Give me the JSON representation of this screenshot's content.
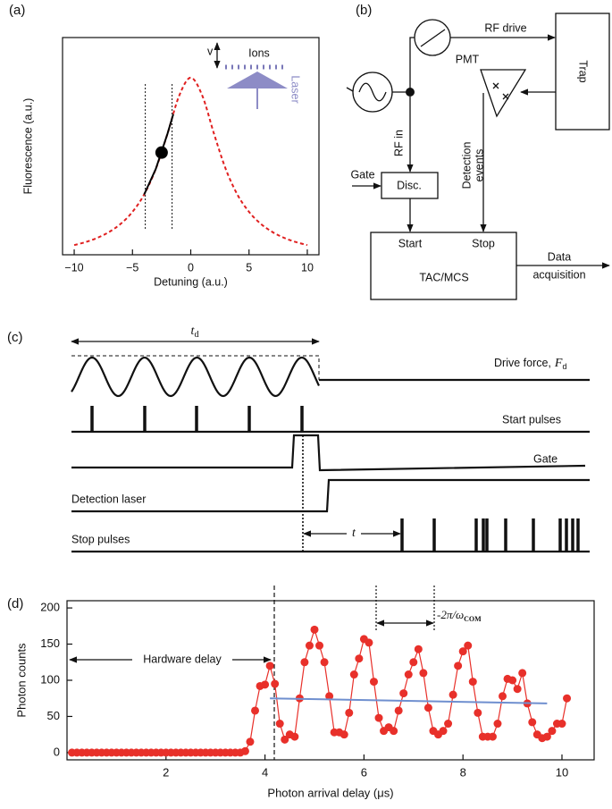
{
  "panel_labels": [
    "(a)",
    "(b)",
    "(c)",
    "(d)"
  ],
  "chart_data": [
    {
      "type": "line",
      "xlabel": "Detuning (a.u.)",
      "ylabel": "Fluorescence (a.u.)",
      "xlim": [
        -11,
        11
      ],
      "ylim": [
        0.03,
        1.22
      ],
      "xticks": [
        {
          "value": -10,
          "label": "−10"
        },
        {
          "value": -5,
          "label": "−5"
        },
        0,
        5,
        10
      ],
      "vlines": [
        -3.9,
        -1.6
      ],
      "series": [
        {
          "color": "#e02020",
          "style": "dashed",
          "x": [
            -10,
            -9,
            -8,
            -7,
            -6,
            -5,
            -4,
            -3,
            -2,
            -1,
            0,
            1,
            2,
            3,
            4,
            5,
            6,
            7,
            8,
            9,
            10
          ],
          "values": [
            0.083,
            0.1,
            0.123,
            0.155,
            0.2,
            0.265,
            0.36,
            0.5,
            0.692,
            0.9,
            1,
            0.9,
            0.692,
            0.5,
            0.36,
            0.265,
            0.2,
            0.155,
            0.123,
            0.1,
            0.083
          ]
        },
        {
          "color": "#000000",
          "style": "solid",
          "x": [
            -4,
            -3,
            -2,
            -1.5
          ],
          "values": [
            0.36,
            0.5,
            0.692,
            0.8
          ]
        },
        {
          "color": "#000000",
          "style": "marker",
          "x": [
            -2.5
          ],
          "values": [
            0.59
          ]
        }
      ],
      "inset": {
        "ions": "Ions",
        "velocity": "v",
        "laser": "Laser"
      }
    },
    {
      "type": "line",
      "xlabel": "Photon arrival delay (μs)",
      "ylabel": "Photon counts",
      "xlim": [
        0,
        10.65
      ],
      "ylim": [
        -10,
        210
      ],
      "xticks": [
        2,
        4,
        6,
        8,
        10
      ],
      "yticks": [
        0,
        50,
        100,
        150,
        200
      ],
      "series": [
        {
          "color": "#e8302a",
          "style": "line-markers",
          "x": [
            0.1,
            0.2,
            0.3,
            0.4,
            0.5,
            0.6,
            0.7,
            0.8,
            0.9,
            1.0,
            1.1,
            1.2,
            1.3,
            1.4,
            1.5,
            1.6,
            1.7,
            1.8,
            1.9,
            2.0,
            2.1,
            2.2,
            2.3,
            2.4,
            2.5,
            2.6,
            2.7,
            2.8,
            2.9,
            3.0,
            3.1,
            3.2,
            3.3,
            3.4,
            3.5,
            3.6,
            3.7,
            3.8,
            3.9,
            4.0,
            4.1,
            4.2,
            4.3,
            4.4,
            4.5,
            4.6,
            4.7,
            4.8,
            4.9,
            5.0,
            5.1,
            5.2,
            5.3,
            5.4,
            5.5,
            5.6,
            5.7,
            5.8,
            5.9,
            6.0,
            6.1,
            6.2,
            6.3,
            6.4,
            6.5,
            6.6,
            6.7,
            6.8,
            6.9,
            7.0,
            7.1,
            7.2,
            7.3,
            7.4,
            7.5,
            7.6,
            7.7,
            7.8,
            7.9,
            8.0,
            8.1,
            8.2,
            8.3,
            8.4,
            8.5,
            8.6,
            8.7,
            8.8,
            8.9,
            9.0,
            9.1,
            9.2,
            9.3,
            9.4,
            9.5,
            9.6,
            9.7,
            9.8,
            9.9,
            10.0,
            10.1
          ],
          "values": [
            0,
            0,
            0,
            0,
            0,
            0,
            0,
            0,
            0,
            0,
            0,
            0,
            0,
            0,
            0,
            0,
            0,
            0,
            0,
            0,
            0,
            0,
            0,
            0,
            0,
            0,
            0,
            0,
            0,
            0,
            0,
            0,
            0,
            0,
            0,
            2,
            15,
            58,
            92,
            94,
            120,
            95,
            40,
            18,
            25,
            22,
            75,
            125,
            148,
            170,
            148,
            125,
            78,
            28,
            28,
            25,
            55,
            108,
            130,
            157,
            152,
            98,
            48,
            30,
            35,
            30,
            58,
            82,
            108,
            125,
            143,
            110,
            62,
            30,
            25,
            30,
            40,
            80,
            120,
            140,
            148,
            98,
            55,
            22,
            22,
            22,
            40,
            78,
            102,
            100,
            88,
            110,
            68,
            42,
            25,
            20,
            22,
            30,
            40,
            40,
            75
          ]
        },
        {
          "color": "#6f8fcf",
          "style": "solid",
          "x": [
            4.1,
            9.7
          ],
          "values": [
            75,
            68
          ]
        }
      ],
      "annotations": {
        "hardware_delay": "Hardware delay",
        "period": "-2π/ω",
        "period_sub": "COM"
      }
    }
  ],
  "diagram": {
    "rf_drive": "RF drive",
    "trap": "Trap",
    "pmt": "PMT",
    "rf_in": "RF in",
    "gate": "Gate",
    "disc": "Disc.",
    "detection_events": [
      "Detection",
      "events"
    ],
    "start": "Start",
    "stop": "Stop",
    "tac_mcs": "TAC/MCS",
    "data_acquisition": [
      "Data",
      "acquisition"
    ]
  },
  "timing": {
    "td_symbol": "t",
    "td_sub": "d",
    "drive_force": "Drive force,",
    "drive_force_symbol": "F",
    "drive_force_sub": "d",
    "start_pulses": "Start pulses",
    "gate": "Gate",
    "detection_laser": "Detection laser",
    "stop_pulses": "Stop pulses",
    "t_symbol": "t"
  }
}
